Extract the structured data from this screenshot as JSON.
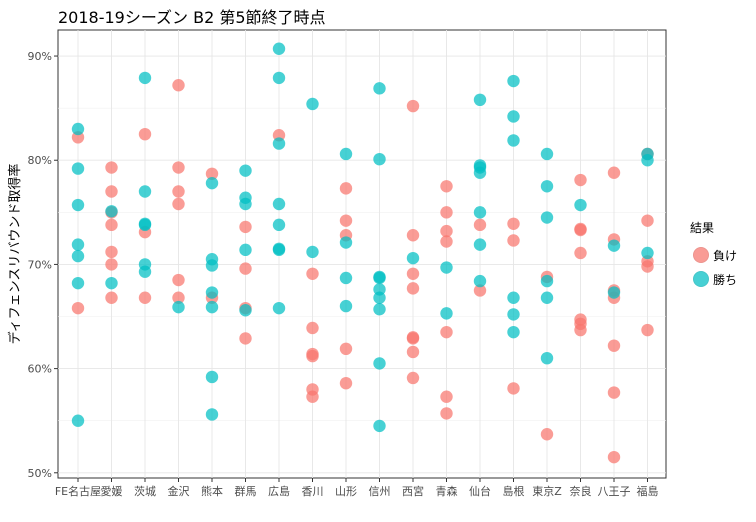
{
  "chart_data": {
    "type": "scatter",
    "title": "2018-19シーズン B2 第5節終了時点",
    "xlabel": "",
    "ylabel": "ディフェンスリバウンド取得率",
    "categories": [
      "FE名古屋",
      "愛媛",
      "茨城",
      "金沢",
      "熊本",
      "群馬",
      "広島",
      "香川",
      "山形",
      "信州",
      "西宮",
      "青森",
      "仙台",
      "島根",
      "東京Z",
      "奈良",
      "八王子",
      "福島"
    ],
    "y_ticks": [
      "50%",
      "60%",
      "70%",
      "80%",
      "90%"
    ],
    "y_tick_values": [
      50,
      60,
      70,
      80,
      90
    ],
    "ylim": [
      49.5,
      92.5
    ],
    "legend_title": "結果",
    "series": [
      {
        "name": "負け",
        "color": "#F8766D",
        "points": [
          {
            "x": "FE名古屋",
            "y": 82.2
          },
          {
            "x": "FE名古屋",
            "y": 65.8
          },
          {
            "x": "愛媛",
            "y": 79.3
          },
          {
            "x": "愛媛",
            "y": 77.0
          },
          {
            "x": "愛媛",
            "y": 75.0
          },
          {
            "x": "愛媛",
            "y": 73.8
          },
          {
            "x": "愛媛",
            "y": 71.2
          },
          {
            "x": "愛媛",
            "y": 70.0
          },
          {
            "x": "愛媛",
            "y": 66.8
          },
          {
            "x": "茨城",
            "y": 82.5
          },
          {
            "x": "茨城",
            "y": 73.1
          },
          {
            "x": "茨城",
            "y": 66.8
          },
          {
            "x": "金沢",
            "y": 87.2
          },
          {
            "x": "金沢",
            "y": 79.3
          },
          {
            "x": "金沢",
            "y": 77.0
          },
          {
            "x": "金沢",
            "y": 75.8
          },
          {
            "x": "金沢",
            "y": 68.5
          },
          {
            "x": "金沢",
            "y": 66.8
          },
          {
            "x": "熊本",
            "y": 78.7
          },
          {
            "x": "熊本",
            "y": 66.8
          },
          {
            "x": "群馬",
            "y": 73.6
          },
          {
            "x": "群馬",
            "y": 69.6
          },
          {
            "x": "群馬",
            "y": 65.8
          },
          {
            "x": "群馬",
            "y": 62.9
          },
          {
            "x": "広島",
            "y": 82.4
          },
          {
            "x": "香川",
            "y": 69.1
          },
          {
            "x": "香川",
            "y": 63.9
          },
          {
            "x": "香川",
            "y": 61.4
          },
          {
            "x": "香川",
            "y": 61.2
          },
          {
            "x": "香川",
            "y": 58.0
          },
          {
            "x": "香川",
            "y": 57.3
          },
          {
            "x": "山形",
            "y": 77.3
          },
          {
            "x": "山形",
            "y": 74.2
          },
          {
            "x": "山形",
            "y": 72.8
          },
          {
            "x": "山形",
            "y": 61.9
          },
          {
            "x": "山形",
            "y": 58.6
          },
          {
            "x": "西宮",
            "y": 85.2
          },
          {
            "x": "西宮",
            "y": 72.8
          },
          {
            "x": "西宮",
            "y": 69.1
          },
          {
            "x": "西宮",
            "y": 67.7
          },
          {
            "x": "西宮",
            "y": 63.0
          },
          {
            "x": "西宮",
            "y": 62.9
          },
          {
            "x": "西宮",
            "y": 61.6
          },
          {
            "x": "西宮",
            "y": 59.1
          },
          {
            "x": "青森",
            "y": 77.5
          },
          {
            "x": "青森",
            "y": 75.0
          },
          {
            "x": "青森",
            "y": 73.2
          },
          {
            "x": "青森",
            "y": 72.2
          },
          {
            "x": "青森",
            "y": 63.5
          },
          {
            "x": "青森",
            "y": 57.3
          },
          {
            "x": "青森",
            "y": 55.7
          },
          {
            "x": "仙台",
            "y": 73.8
          },
          {
            "x": "仙台",
            "y": 67.5
          },
          {
            "x": "島根",
            "y": 73.9
          },
          {
            "x": "島根",
            "y": 72.3
          },
          {
            "x": "島根",
            "y": 58.1
          },
          {
            "x": "東京Z",
            "y": 68.8
          },
          {
            "x": "東京Z",
            "y": 53.7
          },
          {
            "x": "奈良",
            "y": 78.1
          },
          {
            "x": "奈良",
            "y": 73.4
          },
          {
            "x": "奈良",
            "y": 73.3
          },
          {
            "x": "奈良",
            "y": 71.1
          },
          {
            "x": "奈良",
            "y": 64.7
          },
          {
            "x": "奈良",
            "y": 64.3
          },
          {
            "x": "奈良",
            "y": 63.7
          },
          {
            "x": "八王子",
            "y": 78.8
          },
          {
            "x": "八王子",
            "y": 72.4
          },
          {
            "x": "八王子",
            "y": 67.5
          },
          {
            "x": "八王子",
            "y": 66.8
          },
          {
            "x": "八王子",
            "y": 62.2
          },
          {
            "x": "八王子",
            "y": 57.7
          },
          {
            "x": "八王子",
            "y": 51.5
          },
          {
            "x": "福島",
            "y": 80.6
          },
          {
            "x": "福島",
            "y": 74.2
          },
          {
            "x": "福島",
            "y": 70.3
          },
          {
            "x": "福島",
            "y": 69.8
          },
          {
            "x": "福島",
            "y": 63.7
          }
        ]
      },
      {
        "name": "勝ち",
        "color": "#00BFC4",
        "points": [
          {
            "x": "FE名古屋",
            "y": 83.0
          },
          {
            "x": "FE名古屋",
            "y": 79.2
          },
          {
            "x": "FE名古屋",
            "y": 75.7
          },
          {
            "x": "FE名古屋",
            "y": 71.9
          },
          {
            "x": "FE名古屋",
            "y": 70.8
          },
          {
            "x": "FE名古屋",
            "y": 68.2
          },
          {
            "x": "FE名古屋",
            "y": 55.0
          },
          {
            "x": "愛媛",
            "y": 75.1
          },
          {
            "x": "愛媛",
            "y": 68.2
          },
          {
            "x": "茨城",
            "y": 87.9
          },
          {
            "x": "茨城",
            "y": 77.0
          },
          {
            "x": "茨城",
            "y": 73.9
          },
          {
            "x": "茨城",
            "y": 73.8
          },
          {
            "x": "茨城",
            "y": 70.0
          },
          {
            "x": "茨城",
            "y": 69.3
          },
          {
            "x": "金沢",
            "y": 65.9
          },
          {
            "x": "熊本",
            "y": 77.8
          },
          {
            "x": "熊本",
            "y": 70.5
          },
          {
            "x": "熊本",
            "y": 69.9
          },
          {
            "x": "熊本",
            "y": 67.3
          },
          {
            "x": "熊本",
            "y": 65.9
          },
          {
            "x": "熊本",
            "y": 59.2
          },
          {
            "x": "熊本",
            "y": 55.6
          },
          {
            "x": "群馬",
            "y": 79.0
          },
          {
            "x": "群馬",
            "y": 76.4
          },
          {
            "x": "群馬",
            "y": 75.8
          },
          {
            "x": "群馬",
            "y": 71.4
          },
          {
            "x": "群馬",
            "y": 65.6
          },
          {
            "x": "広島",
            "y": 90.7
          },
          {
            "x": "広島",
            "y": 87.9
          },
          {
            "x": "広島",
            "y": 81.6
          },
          {
            "x": "広島",
            "y": 75.8
          },
          {
            "x": "広島",
            "y": 73.8
          },
          {
            "x": "広島",
            "y": 71.5
          },
          {
            "x": "広島",
            "y": 71.4
          },
          {
            "x": "広島",
            "y": 65.8
          },
          {
            "x": "香川",
            "y": 85.4
          },
          {
            "x": "香川",
            "y": 71.2
          },
          {
            "x": "山形",
            "y": 80.6
          },
          {
            "x": "山形",
            "y": 72.1
          },
          {
            "x": "山形",
            "y": 68.7
          },
          {
            "x": "山形",
            "y": 66.0
          },
          {
            "x": "信州",
            "y": 86.9
          },
          {
            "x": "信州",
            "y": 80.1
          },
          {
            "x": "信州",
            "y": 68.8
          },
          {
            "x": "信州",
            "y": 68.7
          },
          {
            "x": "信州",
            "y": 67.6
          },
          {
            "x": "信州",
            "y": 66.8
          },
          {
            "x": "信州",
            "y": 65.7
          },
          {
            "x": "信州",
            "y": 60.5
          },
          {
            "x": "信州",
            "y": 54.5
          },
          {
            "x": "西宮",
            "y": 70.6
          },
          {
            "x": "青森",
            "y": 69.7
          },
          {
            "x": "青森",
            "y": 65.3
          },
          {
            "x": "仙台",
            "y": 85.8
          },
          {
            "x": "仙台",
            "y": 79.5
          },
          {
            "x": "仙台",
            "y": 79.3
          },
          {
            "x": "仙台",
            "y": 78.8
          },
          {
            "x": "仙台",
            "y": 75.0
          },
          {
            "x": "仙台",
            "y": 71.9
          },
          {
            "x": "仙台",
            "y": 68.4
          },
          {
            "x": "島根",
            "y": 87.6
          },
          {
            "x": "島根",
            "y": 84.2
          },
          {
            "x": "島根",
            "y": 81.9
          },
          {
            "x": "島根",
            "y": 66.8
          },
          {
            "x": "島根",
            "y": 65.2
          },
          {
            "x": "島根",
            "y": 63.5
          },
          {
            "x": "東京Z",
            "y": 80.6
          },
          {
            "x": "東京Z",
            "y": 77.5
          },
          {
            "x": "東京Z",
            "y": 74.5
          },
          {
            "x": "東京Z",
            "y": 68.4
          },
          {
            "x": "東京Z",
            "y": 66.8
          },
          {
            "x": "東京Z",
            "y": 61.0
          },
          {
            "x": "奈良",
            "y": 75.7
          },
          {
            "x": "八王子",
            "y": 71.8
          },
          {
            "x": "八王子",
            "y": 67.3
          },
          {
            "x": "福島",
            "y": 80.6
          },
          {
            "x": "福島",
            "y": 80.0
          },
          {
            "x": "福島",
            "y": 71.1
          }
        ]
      }
    ]
  }
}
